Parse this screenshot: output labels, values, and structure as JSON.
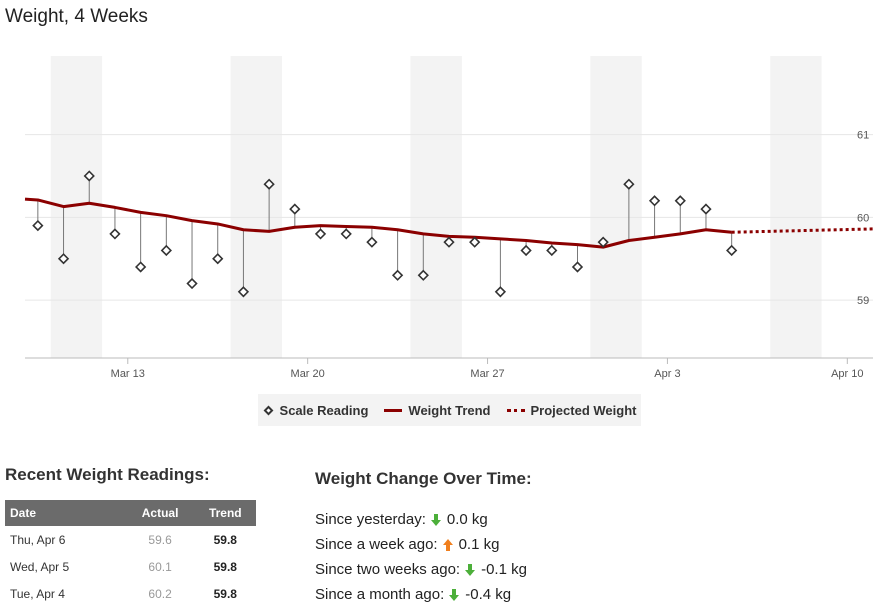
{
  "page": {
    "title": "Weight, 4 Weeks"
  },
  "colors": {
    "trend": "#8b0000",
    "band": "#f3f3f3",
    "gridline": "#e6e6e6",
    "arrow_down": "#4caf3a",
    "arrow_up": "#f07f1e",
    "table_header": "#6b6b6b"
  },
  "chart_data": {
    "type": "line",
    "title": "Weight, 4 Weeks",
    "x_tick_labels": [
      "Mar 13",
      "Mar 20",
      "Mar 27",
      "Apr 3",
      "Apr 10"
    ],
    "x_tick_days": [
      13,
      20,
      27,
      34,
      41
    ],
    "x_range_days": [
      9,
      42
    ],
    "weekend_bands_days": [
      [
        10,
        12
      ],
      [
        17,
        19
      ],
      [
        24,
        26
      ],
      [
        31,
        33
      ],
      [
        38,
        40
      ]
    ],
    "y_tick_labels": [
      "59",
      "60",
      "61"
    ],
    "y_ticks": [
      59,
      60,
      61
    ],
    "ylim": [
      58.3,
      61.95
    ],
    "grid": true,
    "legend": {
      "position": "bottom-center",
      "entries": [
        "Scale Reading",
        "Weight Trend",
        "Projected Weight"
      ]
    },
    "series": [
      {
        "name": "Scale Reading",
        "marker": "diamond",
        "x_days": [
          9.5,
          10.5,
          11.5,
          12.5,
          13.5,
          14.5,
          15.5,
          16.5,
          17.5,
          18.5,
          19.5,
          20.5,
          21.5,
          22.5,
          23.5,
          24.5,
          25.5,
          26.5,
          27.5,
          28.5,
          29.5,
          30.5,
          31.5,
          32.5,
          33.5,
          34.5,
          35.5,
          36.5
        ],
        "values": [
          59.9,
          59.5,
          60.5,
          59.8,
          59.4,
          59.6,
          59.2,
          59.5,
          59.1,
          60.4,
          60.1,
          59.8,
          59.8,
          59.7,
          59.3,
          59.3,
          59.7,
          59.7,
          59.1,
          59.6,
          59.6,
          59.4,
          59.7,
          60.4,
          60.2,
          60.2,
          60.1,
          59.6
        ]
      },
      {
        "name": "Weight Trend",
        "x_days": [
          9,
          9.5,
          10.5,
          11.5,
          12.5,
          13.5,
          14.5,
          15.5,
          16.5,
          17.5,
          18.5,
          19.5,
          20.5,
          21.5,
          22.5,
          23.5,
          24.5,
          25.5,
          26.5,
          27.5,
          28.5,
          29.5,
          30.5,
          31.5,
          32.5,
          33.5,
          34.5,
          35.5,
          36.5
        ],
        "values": [
          60.22,
          60.21,
          60.13,
          60.17,
          60.12,
          60.06,
          60.02,
          59.96,
          59.92,
          59.85,
          59.83,
          59.88,
          59.9,
          59.89,
          59.88,
          59.85,
          59.8,
          59.77,
          59.76,
          59.74,
          59.72,
          59.69,
          59.67,
          59.64,
          59.72,
          59.76,
          59.8,
          59.85,
          59.82
        ]
      },
      {
        "name": "Projected Weight",
        "x_days": [
          36.5,
          42
        ],
        "values": [
          59.82,
          59.86
        ]
      }
    ]
  },
  "recent": {
    "title": "Recent Weight Readings:",
    "headers": {
      "date": "Date",
      "actual": "Actual",
      "trend": "Trend"
    },
    "rows": [
      {
        "date": "Thu, Apr 6",
        "actual": "59.6",
        "trend": "59.8"
      },
      {
        "date": "Wed, Apr 5",
        "actual": "60.1",
        "trend": "59.8"
      },
      {
        "date": "Tue, Apr 4",
        "actual": "60.2",
        "trend": "59.8"
      }
    ]
  },
  "changes": {
    "title": "Weight Change Over Time:",
    "items": [
      {
        "label": "Since yesterday:",
        "direction": "down",
        "icon": "arrow-down-icon",
        "value": "0.0 kg"
      },
      {
        "label": "Since a week ago:",
        "direction": "up",
        "icon": "arrow-up-icon",
        "value": "0.1 kg"
      },
      {
        "label": "Since two weeks ago:",
        "direction": "down",
        "icon": "arrow-down-icon",
        "value": "-0.1 kg"
      },
      {
        "label": "Since a month ago:",
        "direction": "down",
        "icon": "arrow-down-icon",
        "value": "-0.4 kg"
      }
    ]
  }
}
